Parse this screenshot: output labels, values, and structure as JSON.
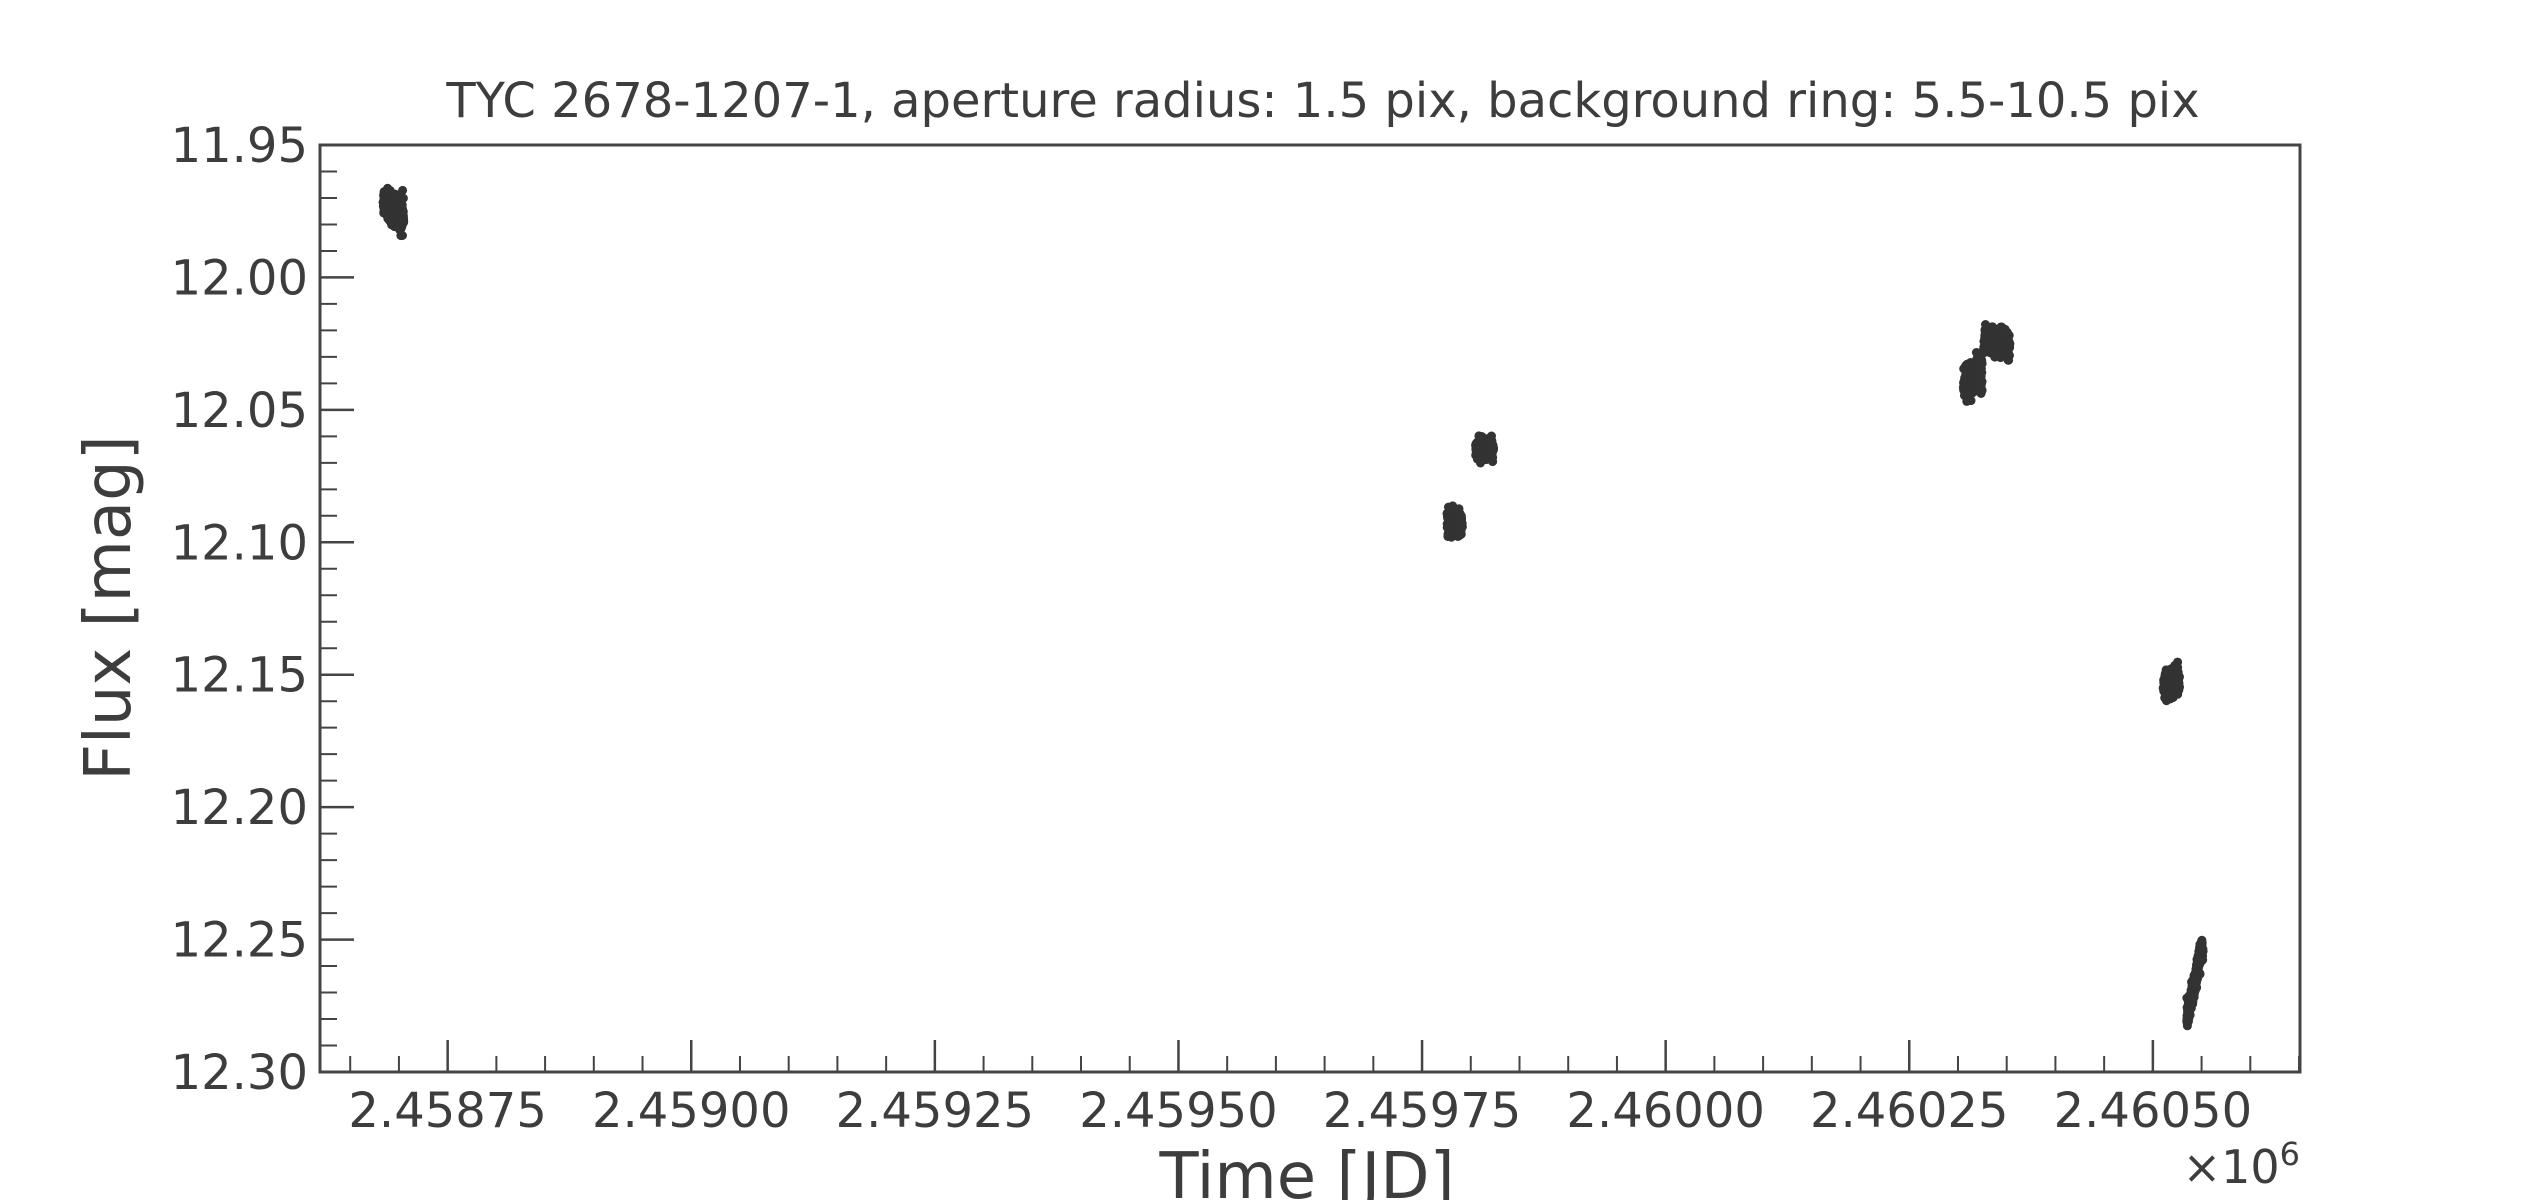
{
  "chart_data": {
    "type": "scatter",
    "title": "TYC 2678-1207-1, aperture radius: 1.5 pix, background ring: 5.5-10.5 pix",
    "xlabel": "Time [JD]",
    "ylabel": "Flux [mag]",
    "x_offset_label": "×10",
    "x_offset_exponent": "6",
    "x_scale_factor": 1000000,
    "xlim": [
      2.458619,
      2.460651
    ],
    "ylim": [
      12.3,
      11.95
    ],
    "y_inverted": true,
    "grid": false,
    "legend": "none",
    "marker_color": "#333333",
    "x_ticks": [
      2.45875,
      2.459,
      2.45925,
      2.4595,
      2.45975,
      2.46,
      2.46025,
      2.4605
    ],
    "x_tick_labels": [
      "2.45875",
      "2.45900",
      "2.45925",
      "2.45950",
      "2.45975",
      "2.46000",
      "2.46025",
      "2.46050"
    ],
    "y_ticks": [
      11.95,
      12.0,
      12.05,
      12.1,
      12.15,
      12.2,
      12.25,
      12.3
    ],
    "y_tick_labels": [
      "11.95",
      "12.00",
      "12.05",
      "12.10",
      "12.15",
      "12.20",
      "12.25",
      "12.30"
    ],
    "clusters": [
      {
        "x_start": 2.458684,
        "x_end": 2.458705,
        "y_start": 11.972,
        "y_end": 11.977,
        "spread": 0.008
      },
      {
        "x_start": 2.459776,
        "x_end": 2.459791,
        "y_start": 12.092,
        "y_end": 12.093,
        "spread": 0.006
      },
      {
        "x_start": 2.459805,
        "x_end": 2.459823,
        "y_start": 12.065,
        "y_end": 12.064,
        "spread": 0.005
      },
      {
        "x_start": 2.460306,
        "x_end": 2.460325,
        "y_start": 12.04,
        "y_end": 12.036,
        "spread": 0.009
      },
      {
        "x_start": 2.460327,
        "x_end": 2.460353,
        "y_start": 12.023,
        "y_end": 12.025,
        "spread": 0.008
      },
      {
        "x_start": 2.460511,
        "x_end": 2.460527,
        "y_start": 12.155,
        "y_end": 12.152,
        "spread": 0.007
      },
      {
        "x_start": 2.460535,
        "x_end": 2.460551,
        "y_start": 12.28,
        "y_end": 12.252,
        "spread": 0.006
      }
    ]
  }
}
